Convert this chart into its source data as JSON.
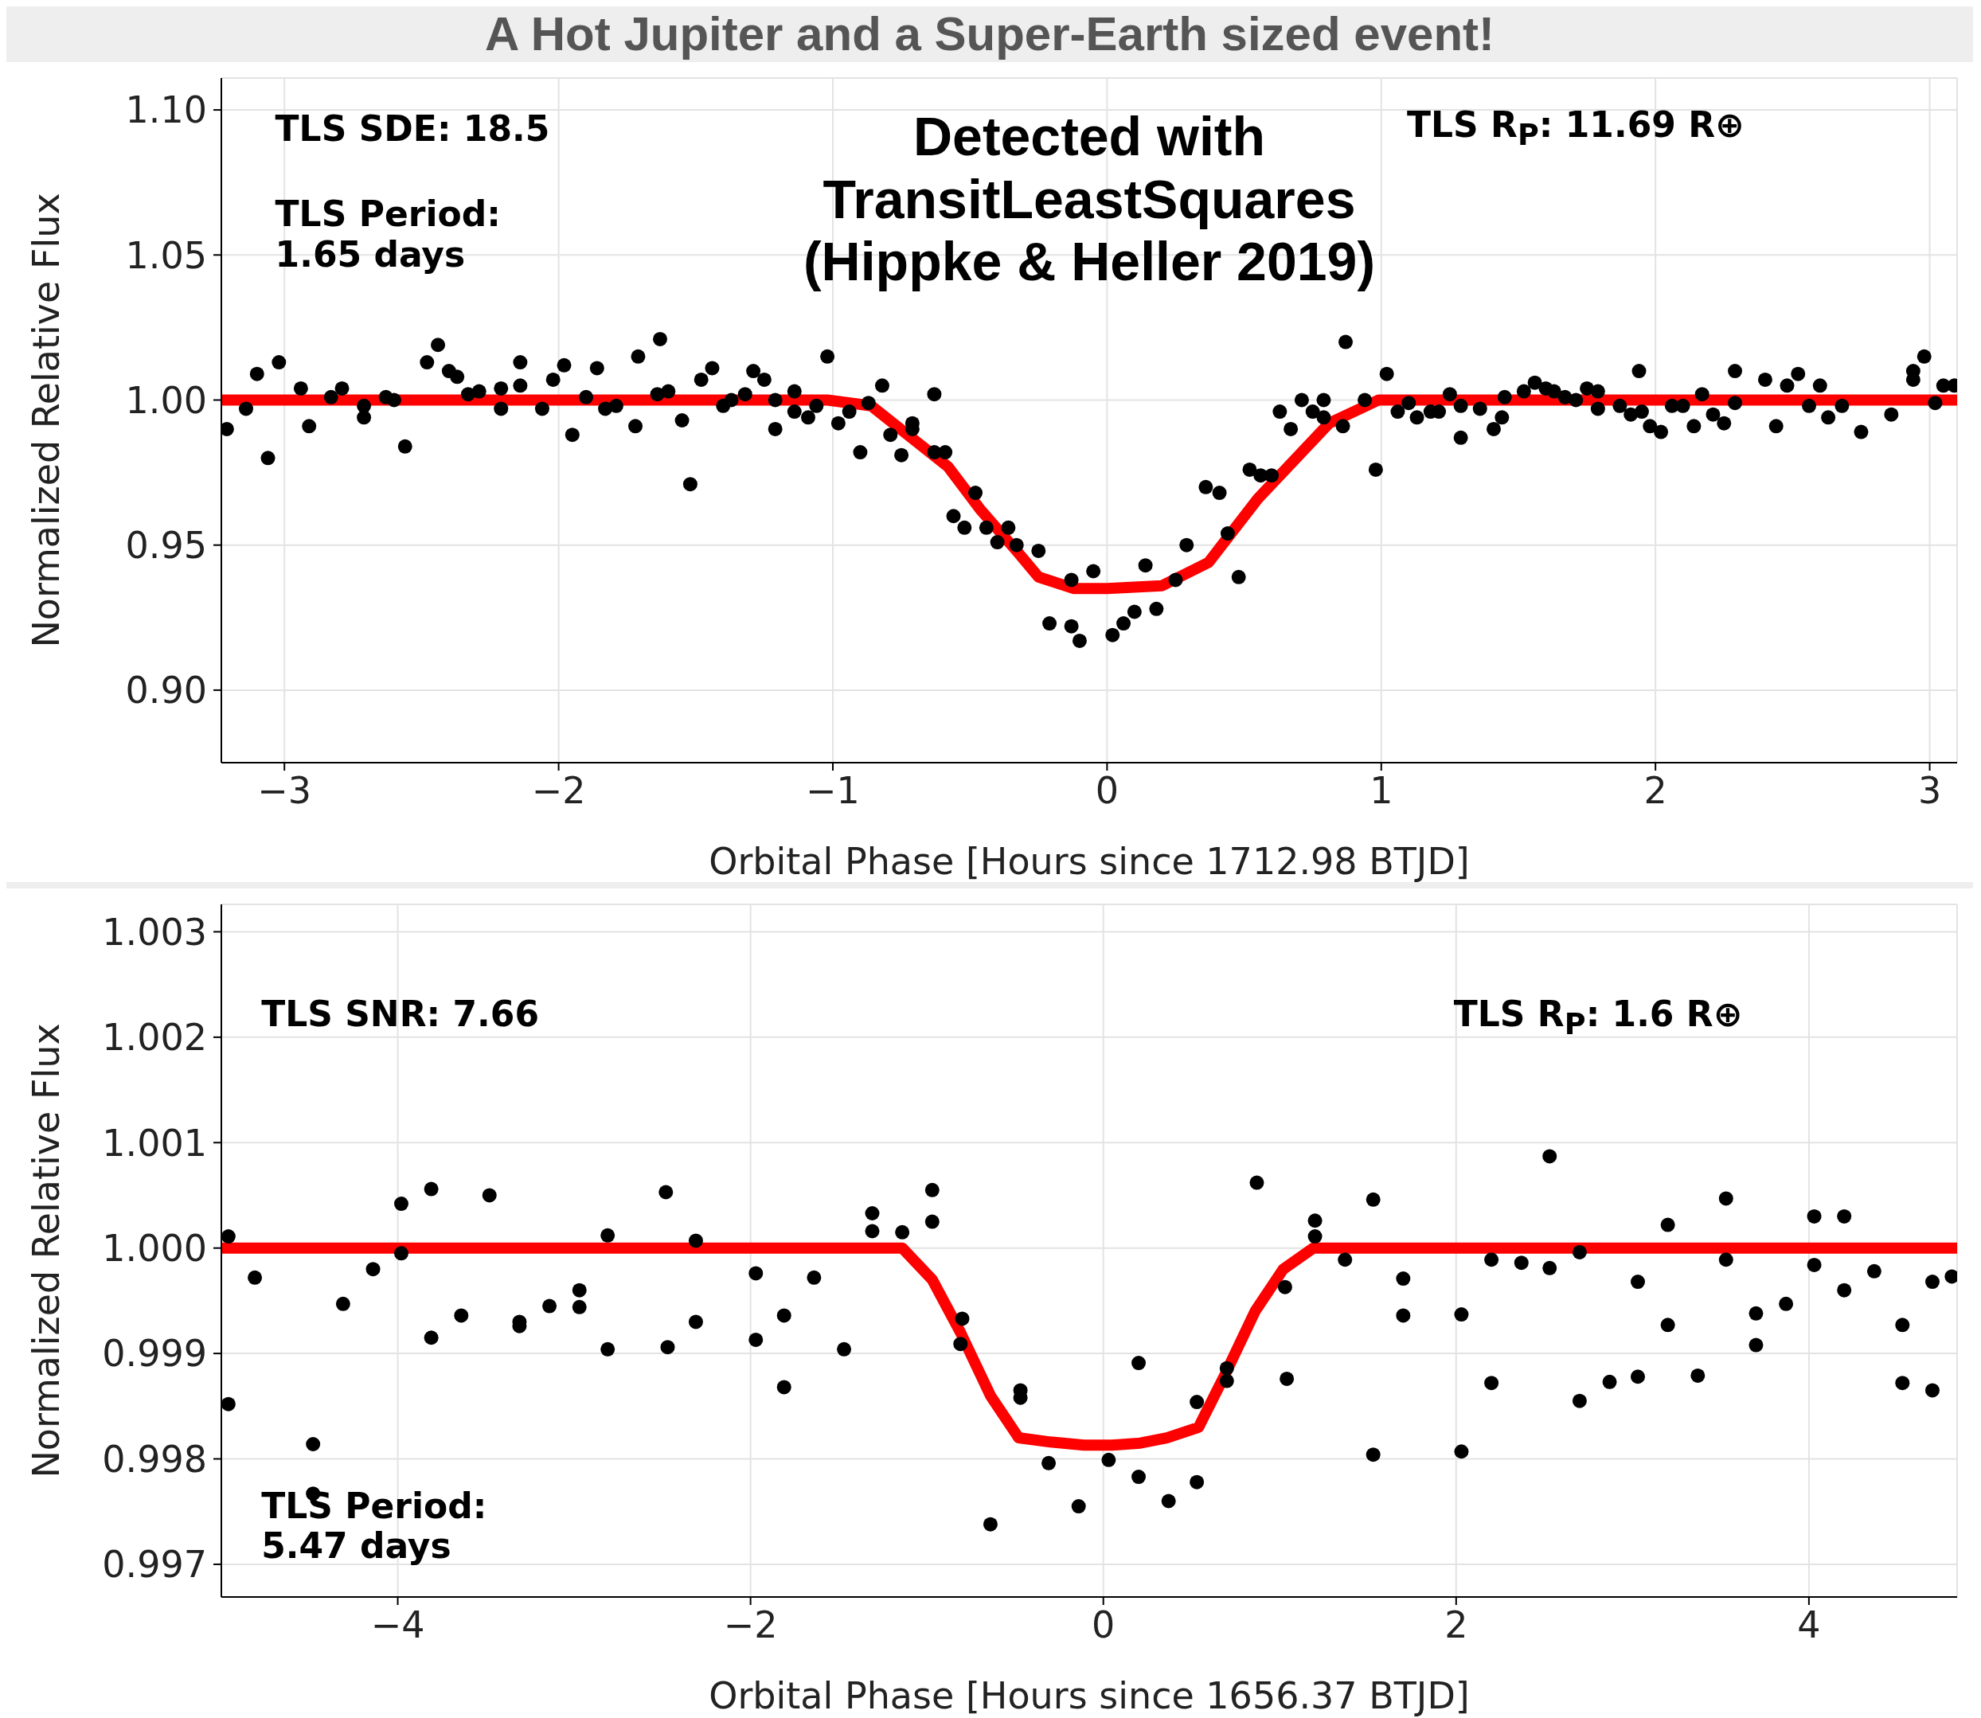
{
  "chart_data": [
    {
      "type": "scatter",
      "title": "A Hot Jupiter and a Super-Earth sized event!",
      "xlabel": "Orbital Phase [Hours since 1712.98 BTJD]",
      "ylabel": "Normalized Relative Flux",
      "annotations": [
        "TLS SDE: 18.5",
        "TLS Period:\n1.65 days",
        "Detected with\nTransitLeastSquares\n(Hippke & Heller 2019)",
        "TLS R$_{P}$: 11.69 R⊕"
      ],
      "xlim": [
        -3.23,
        3.1
      ],
      "xticks": [
        {
          "value": -3,
          "label": "−3"
        },
        {
          "value": -2,
          "label": "−2"
        },
        {
          "value": -1,
          "label": "−1"
        },
        0,
        1,
        2,
        3
      ],
      "ylim": [
        0.875,
        1.111
      ],
      "yticks": [
        {
          "value": 0.9,
          "label": "0.90"
        },
        0.95,
        {
          "value": 1,
          "label": "1.00"
        },
        1.05,
        {
          "value": 1.1,
          "label": "1.10"
        }
      ],
      "grid": true,
      "line_style": "solid",
      "series": [
        {
          "marker": "circle",
          "color": "#000000",
          "x": [
            -3.21,
            -3.14,
            -3.1,
            -3.06,
            -3.02,
            -2.94,
            -2.91,
            -2.83,
            -2.79,
            -2.71,
            -2.71,
            -2.63,
            -2.6,
            -2.56,
            -2.48,
            -2.44,
            -2.4,
            -2.37,
            -2.33,
            -2.29,
            -2.21,
            -2.21,
            -2.14,
            -2.14,
            -2.06,
            -2.02,
            -1.98,
            -1.95,
            -1.9,
            -1.86,
            -1.83,
            -1.79,
            -1.72,
            -1.71,
            -1.64,
            -1.63,
            -1.6,
            -1.55,
            -1.52,
            -1.48,
            -1.44,
            -1.4,
            -1.37,
            -1.32,
            -1.29,
            -1.25,
            -1.21,
            -1.21,
            -1.14,
            -1.14,
            -1.09,
            -1.06,
            -1.02,
            -0.98,
            -0.94,
            -0.9,
            -0.87,
            -0.82,
            -0.79,
            -0.75,
            -0.71,
            -0.71,
            -0.63,
            -0.63,
            -0.59,
            -0.56,
            -0.52,
            -0.48,
            -0.44,
            -0.4,
            -0.36,
            -0.33,
            -0.25,
            -0.21,
            -0.13,
            -0.13,
            -0.1,
            -0.05,
            0.02,
            0.06,
            0.1,
            0.14,
            0.18,
            0.25,
            0.29,
            0.36,
            0.41,
            0.44,
            0.48,
            0.52,
            0.56,
            0.6,
            0.63,
            0.67,
            0.71,
            0.75,
            0.79,
            0.79,
            0.86,
            0.87,
            0.94,
            0.98,
            1.02,
            1.06,
            1.1,
            1.13,
            1.18,
            1.21,
            1.25,
            1.29,
            1.29,
            1.36,
            1.41,
            1.44,
            1.45,
            1.52,
            1.56,
            1.6,
            1.63,
            1.67,
            1.71,
            1.75,
            1.79,
            1.79,
            1.87,
            1.91,
            1.94,
            1.95,
            1.98,
            2.02,
            2.06,
            2.1,
            2.14,
            2.17,
            2.21,
            2.25,
            2.29,
            2.29,
            2.4,
            2.44,
            2.48,
            2.52,
            2.56,
            2.6,
            2.63,
            2.68,
            2.75,
            2.86,
            2.94,
            2.94,
            2.98,
            3.02,
            3.05,
            3.09
          ],
          "values": [
            0.99,
            0.997,
            1.009,
            0.98,
            1.013,
            1.004,
            0.991,
            1.001,
            1.004,
            0.998,
            0.994,
            1.001,
            1.0,
            0.984,
            1.013,
            1.019,
            1.01,
            1.008,
            1.002,
            1.003,
            1.004,
            0.997,
            1.013,
            1.005,
            0.997,
            1.007,
            1.012,
            0.988,
            1.001,
            1.011,
            0.997,
            0.998,
            0.991,
            1.015,
            1.002,
            1.021,
            1.003,
            0.993,
            0.971,
            1.007,
            1.011,
            0.998,
            1.0,
            1.002,
            1.01,
            1.007,
            1.0,
            0.99,
            1.003,
            0.996,
            0.994,
            0.998,
            1.015,
            0.992,
            0.996,
            0.982,
            0.999,
            1.005,
            0.988,
            0.981,
            0.992,
            0.99,
            1.002,
            0.982,
            0.982,
            0.96,
            0.956,
            0.968,
            0.956,
            0.951,
            0.956,
            0.95,
            0.948,
            0.923,
            0.922,
            0.938,
            0.917,
            0.941,
            0.919,
            0.923,
            0.927,
            0.943,
            0.928,
            0.938,
            0.95,
            0.97,
            0.968,
            0.954,
            0.939,
            0.976,
            0.974,
            0.974,
            0.996,
            0.99,
            1.0,
            0.996,
            1.0,
            0.994,
            0.991,
            1.02,
            1.0,
            0.976,
            1.009,
            0.996,
            0.999,
            0.994,
            0.996,
            0.996,
            1.002,
            0.998,
            0.987,
            0.997,
            0.99,
            0.994,
            1.001,
            1.003,
            1.006,
            1.004,
            1.003,
            1.001,
            1.0,
            1.004,
            1.003,
            0.997,
            0.998,
            0.995,
            1.01,
            0.996,
            0.991,
            0.989,
            0.998,
            0.998,
            0.991,
            1.002,
            0.995,
            0.992,
            1.01,
            0.999,
            1.007,
            0.991,
            1.005,
            1.009,
            0.998,
            1.005,
            0.994,
            0.998,
            0.989,
            0.995,
            1.01,
            1.007,
            1.015,
            0.999,
            1.005,
            1.005
          ]
        },
        {
          "type": "line",
          "marker": "none",
          "color": "#ff0000",
          "x": [
            -3.23,
            -1.02,
            -0.86,
            -0.58,
            -0.46,
            -0.33,
            -0.25,
            -0.12,
            0,
            0.2,
            0.37,
            0.55,
            0.81,
            0.99,
            3.1
          ],
          "values": [
            1.0,
            1.0,
            0.998,
            0.977,
            0.962,
            0.948,
            0.939,
            0.935,
            0.935,
            0.936,
            0.944,
            0.966,
            0.992,
            1.0,
            1.0
          ]
        }
      ]
    },
    {
      "type": "scatter",
      "xlabel": "Orbital Phase [Hours since 1656.37 BTJD]",
      "ylabel": "Normalized Relative Flux",
      "annotations": [
        "TLS SNR: 7.66",
        "TLS R$_{P}$: 1.6 R⊕",
        "TLS Period:\n5.47 days"
      ],
      "xlim": [
        -5.0,
        4.84
      ],
      "xticks": [
        {
          "value": -4,
          "label": "−4"
        },
        {
          "value": -2,
          "label": "−2"
        },
        0,
        2,
        4
      ],
      "ylim": [
        0.99669,
        1.00326
      ],
      "yticks": [
        0.997,
        0.998,
        0.999,
        {
          "value": 1,
          "label": "1.000"
        },
        1.001,
        1.002,
        1.003
      ],
      "grid": true,
      "line_style": "solid",
      "series": [
        {
          "marker": "circle",
          "color": "#000000",
          "x": [
            -4.96,
            -4.96,
            -4.81,
            -4.48,
            -4.48,
            -4.31,
            -4.14,
            -3.98,
            -3.98,
            -3.81,
            -3.81,
            -3.64,
            -3.48,
            -3.31,
            -3.31,
            -3.14,
            -2.97,
            -2.97,
            -2.81,
            -2.81,
            -2.48,
            -2.47,
            -2.31,
            -2.31,
            -1.97,
            -1.97,
            -1.81,
            -1.81,
            -1.64,
            -1.47,
            -1.31,
            -1.31,
            -1.14,
            -0.97,
            -0.97,
            -0.8,
            -0.81,
            -0.64,
            -0.47,
            -0.47,
            -0.31,
            -0.14,
            0.03,
            0.2,
            0.2,
            0.37,
            0.53,
            0.53,
            0.7,
            0.7,
            0.87,
            1.03,
            1.04,
            1.2,
            1.2,
            1.37,
            1.53,
            1.53,
            1.7,
            1.7,
            2.03,
            2.03,
            2.2,
            2.2,
            2.37,
            2.53,
            2.53,
            2.7,
            2.7,
            2.87,
            3.03,
            3.03,
            3.2,
            3.2,
            3.37,
            3.53,
            3.53,
            3.7,
            3.7,
            3.87,
            4.03,
            4.03,
            4.2,
            4.2,
            4.37,
            4.53,
            4.53,
            4.7,
            4.7,
            4.81
          ],
          "values": [
            1.00011,
            0.99852,
            0.99972,
            0.99814,
            0.99767,
            0.99947,
            0.9998,
            1.00042,
            0.99995,
            1.00056,
            0.99915,
            0.99936,
            1.0005,
            0.9993,
            0.99926,
            0.99945,
            0.9996,
            0.99944,
            1.00012,
            0.99904,
            1.00053,
            0.99906,
            1.00007,
            0.9993,
            0.99976,
            0.99913,
            0.99936,
            0.99868,
            0.99972,
            0.99904,
            1.00033,
            1.00016,
            1.00015,
            1.00055,
            1.00025,
            0.99933,
            0.99909,
            0.99738,
            0.99865,
            0.99858,
            0.99796,
            0.99755,
            0.99799,
            0.99891,
            0.99783,
            0.9976,
            0.99854,
            0.99778,
            0.99886,
            0.99874,
            1.00062,
            0.99963,
            0.99876,
            1.00026,
            1.00011,
            0.99989,
            1.00046,
            0.99804,
            0.99971,
            0.99936,
            0.99937,
            0.99807,
            0.99989,
            0.99872,
            0.99986,
            1.00087,
            0.99981,
            0.99996,
            0.99855,
            0.99873,
            0.99968,
            0.99878,
            1.00022,
            0.99927,
            0.99879,
            1.00047,
            0.99989,
            0.99938,
            0.99908,
            0.99947,
            1.0003,
            0.99984,
            1.0003,
            0.9996,
            0.99978,
            0.99927,
            0.99872,
            0.99968,
            0.99865,
            0.99973
          ]
        },
        {
          "type": "line",
          "marker": "none",
          "color": "#ff0000",
          "x": [
            -5.0,
            -1.14,
            -0.97,
            -0.81,
            -0.64,
            -0.48,
            -0.3,
            -0.11,
            0.05,
            0.21,
            0.36,
            0.54,
            0.69,
            0.86,
            1.02,
            1.19,
            4.84
          ],
          "values": [
            1.0,
            1.0,
            0.9997,
            0.9992,
            0.9986,
            0.9982,
            0.99816,
            0.99813,
            0.99813,
            0.99815,
            0.9982,
            0.9983,
            0.9988,
            0.9994,
            0.9998,
            1.0,
            1.0
          ]
        }
      ]
    }
  ]
}
